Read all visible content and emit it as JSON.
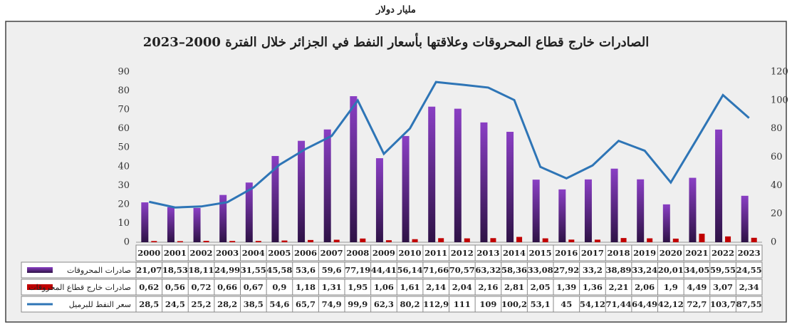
{
  "unit_label": "مليار دولار",
  "chart_data": {
    "type": "bar-line",
    "title": "الصادرات خارج قطاع المحروقات وعلاقتها بأسعار النفط في الجزائر خلال الفترة 2000–2023",
    "categories": [
      "2000",
      "2001",
      "2002",
      "2003",
      "2004",
      "2005",
      "2006",
      "2007",
      "2008",
      "2009",
      "2010",
      "2011",
      "2012",
      "2013",
      "2014",
      "2015",
      "2016",
      "2017",
      "2018",
      "2019",
      "2020",
      "2021",
      "2022",
      "2023"
    ],
    "series": [
      {
        "name": "صادرات المحروقات",
        "type": "bar",
        "color": "#7030a0",
        "values": [
          21.07,
          18.53,
          18.11,
          24.99,
          31.55,
          45.58,
          53.6,
          59.6,
          77.19,
          44.41,
          56.14,
          71.66,
          70.57,
          63.32,
          58.36,
          33.08,
          27.92,
          33.2,
          38.89,
          33.24,
          20.01,
          34.05,
          59.55,
          24.55
        ],
        "value_labels": [
          "21,07",
          "18,53",
          "18,11",
          "24,99",
          "31,55",
          "45,58",
          "53,6",
          "59,6",
          "77,19",
          "44,41",
          "56,14",
          "71,66",
          "70,57",
          "63,32",
          "58,36",
          "33,08",
          "27,92",
          "33,2",
          "38,89",
          "33,24",
          "20,01",
          "34,05",
          "59,55",
          "24,55"
        ]
      },
      {
        "name": "صادرات خارج قطاع المحروقات",
        "type": "bar",
        "color": "#c00000",
        "values": [
          0.62,
          0.56,
          0.72,
          0.66,
          0.67,
          0.9,
          1.18,
          1.31,
          1.95,
          1.06,
          1.61,
          2.14,
          2.04,
          2.16,
          2.81,
          2.05,
          1.39,
          1.36,
          2.21,
          2.06,
          1.9,
          4.49,
          3.07,
          2.34
        ],
        "value_labels": [
          "0,62",
          "0,56",
          "0,72",
          "0,66",
          "0,67",
          "0,9",
          "1,18",
          "1,31",
          "1,95",
          "1,06",
          "1,61",
          "2,14",
          "2,04",
          "2,16",
          "2,81",
          "2,05",
          "1,39",
          "1,36",
          "2,21",
          "2,06",
          "1,9",
          "4,49",
          "3,07",
          "2,34"
        ]
      },
      {
        "name": "سعر النفط للبرميل",
        "type": "line",
        "axis": "y2",
        "color": "#2e75b6",
        "values": [
          28.5,
          24.5,
          25.2,
          28.2,
          38.5,
          54.6,
          65.7,
          74.9,
          99.9,
          62.3,
          80.2,
          112.9,
          111,
          109,
          100.2,
          53.1,
          45,
          54.12,
          71.44,
          64.49,
          42.12,
          72.7,
          103.7,
          87.55
        ],
        "value_labels": [
          "28,5",
          "24,5",
          "25,2",
          "28,2",
          "38,5",
          "54,6",
          "65,7",
          "74,9",
          "99,9",
          "62,3",
          "80,2",
          "112,9",
          "111",
          "109",
          "100,2",
          "53,1",
          "45",
          "54,12",
          "71,44",
          "64,49",
          "42,12",
          "72,7",
          "103,7",
          "87,55"
        ]
      }
    ],
    "ylim": [
      0,
      90
    ],
    "yticks": [
      0,
      10,
      20,
      30,
      40,
      50,
      60,
      70,
      80,
      90
    ],
    "y2lim": [
      0,
      120
    ],
    "y2ticks": [
      0,
      20,
      40,
      60,
      80,
      100,
      120
    ]
  }
}
